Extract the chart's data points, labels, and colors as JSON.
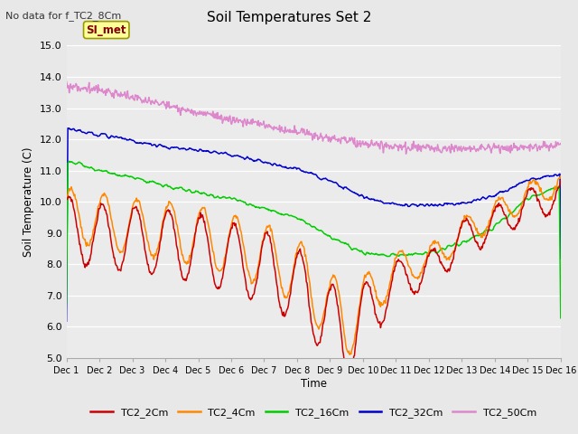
{
  "title": "Soil Temperatures Set 2",
  "subtitle": "No data for f_TC2_8Cm",
  "ylabel": "Soil Temperature (C)",
  "xlabel": "Time",
  "ylim": [
    5.0,
    15.0
  ],
  "yticks": [
    5.0,
    6.0,
    7.0,
    8.0,
    9.0,
    10.0,
    11.0,
    12.0,
    13.0,
    14.0,
    15.0
  ],
  "xtick_labels": [
    "Dec 1",
    "Dec 2",
    "Dec 3",
    "Dec 4",
    "Dec 5",
    "Dec 6",
    "Dec 7",
    "Dec 8",
    "Dec 9",
    "Dec 10",
    "Dec 11",
    "Dec 12",
    "Dec 13",
    "Dec 14",
    "Dec 15",
    "Dec 16"
  ],
  "plot_bg_color": "#ebebeb",
  "fig_bg_color": "#e8e8e8",
  "grid_color": "#ffffff",
  "legend_items": [
    {
      "label": "TC2_2Cm",
      "color": "#cc0000"
    },
    {
      "label": "TC2_4Cm",
      "color": "#ff8800"
    },
    {
      "label": "TC2_16Cm",
      "color": "#00cc00"
    },
    {
      "label": "TC2_32Cm",
      "color": "#0000cc"
    },
    {
      "label": "TC2_50Cm",
      "color": "#dd88cc"
    }
  ],
  "annotation_label": "SI_met",
  "annotation_bg": "#ffff99",
  "annotation_border": "#999900",
  "annotation_text_color": "#880000"
}
